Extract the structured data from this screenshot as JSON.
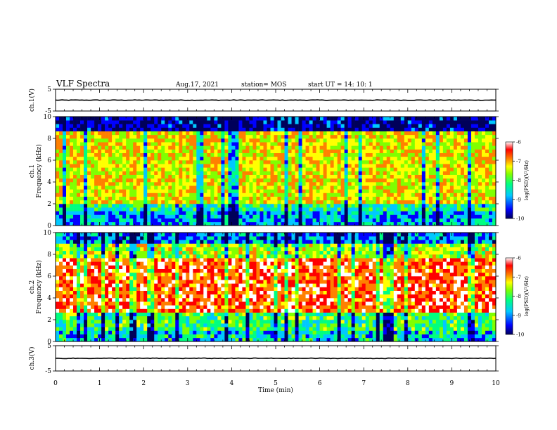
{
  "header": {
    "title": "VLF Spectra",
    "date": "Aug.17, 2021",
    "station": "station= MOS",
    "start": "start  UT  =   14: 10: 1"
  },
  "colors": {
    "scale": [
      "#00005a",
      "#0000ff",
      "#00c8ff",
      "#00ff80",
      "#80ff00",
      "#ffff00",
      "#ff8000",
      "#ff0000",
      "#ffffff"
    ]
  },
  "chart_data": [
    {
      "type": "line",
      "name": "ch1-waveform",
      "ylabel": "ch.1(V)",
      "ylim": [
        -5,
        5
      ],
      "yticks": [
        "5",
        "-5"
      ],
      "x": [
        0,
        10
      ],
      "y": [
        0,
        0
      ]
    },
    {
      "type": "heatmap",
      "name": "ch1-spectrogram",
      "ylabel": "ch.1\nFrequency  (kHz)",
      "ylim": [
        0,
        10
      ],
      "yticks": [
        "0",
        "2",
        "4",
        "6",
        "8",
        "10"
      ],
      "colorbar": {
        "label": "log(PSD)(V²/Hz)",
        "range": [
          -10,
          -6
        ],
        "ticks": [
          "-6",
          "-7",
          "-8",
          "-9",
          "-10"
        ]
      }
    },
    {
      "type": "heatmap",
      "name": "ch2-spectrogram",
      "ylabel": "ch.2\nFrequency  (kHz)",
      "ylim": [
        0,
        10
      ],
      "yticks": [
        "0",
        "2",
        "4",
        "6",
        "8",
        "10"
      ],
      "colorbar": {
        "label": "log(PSD)(V²/Hz)",
        "range": [
          -10,
          -6
        ],
        "ticks": [
          "-6",
          "-7",
          "-8",
          "-9",
          "-10"
        ]
      }
    },
    {
      "type": "line",
      "name": "ch3-waveform",
      "ylabel": "ch.3(V)",
      "ylim": [
        -5,
        5
      ],
      "yticks": [
        "5",
        "-5"
      ],
      "x": [
        0,
        10
      ],
      "y": [
        0,
        0
      ]
    }
  ],
  "xaxis": {
    "label": "Time  (min)",
    "xlim": [
      0,
      10
    ],
    "ticks": [
      "0",
      "1",
      "2",
      "3",
      "4",
      "5",
      "6",
      "7",
      "8",
      "9",
      "10"
    ]
  }
}
